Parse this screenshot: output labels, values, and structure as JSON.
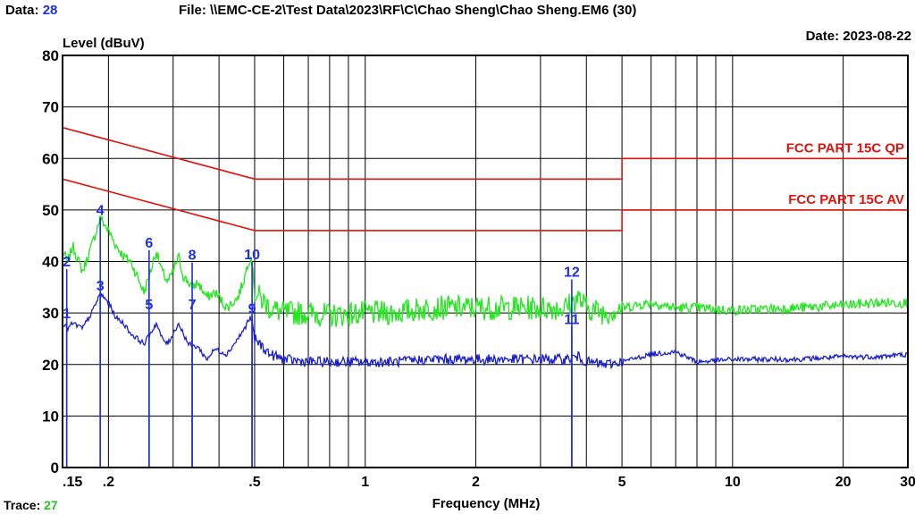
{
  "header": {
    "data_label": "Data:",
    "data_value": "28",
    "file_label": "File:",
    "file_path": "\\\\EMC-CE-2\\Test Data\\2023\\RF\\C\\Chao Sheng\\Chao Sheng.EM6  (30)",
    "date_label": "Date:",
    "date_value": "2023-08-22"
  },
  "footer": {
    "trace_label": "Trace:",
    "trace_value": "27"
  },
  "colors": {
    "qp_trace": "#22e81e",
    "av_trace": "#1a1fd0",
    "limit": "#e0140e",
    "marker": "#1d2fe0",
    "grid": "#000000"
  },
  "chart_data": {
    "type": "line",
    "ylabel": "Level (dBuV)",
    "xlabel": "Frequency (MHz)",
    "x_scale": "log",
    "xlim": [
      0.15,
      30
    ],
    "ylim": [
      0,
      80
    ],
    "x_ticks": [
      {
        "value": 0.15,
        "label": ".15"
      },
      {
        "value": 0.2,
        "label": ".2"
      },
      {
        "value": 0.5,
        "label": ".5"
      },
      {
        "value": 1,
        "label": "1"
      },
      {
        "value": 2,
        "label": "2"
      },
      {
        "value": 5,
        "label": "5"
      },
      {
        "value": 10,
        "label": "10"
      },
      {
        "value": 20,
        "label": "20"
      },
      {
        "value": 30,
        "label": "30"
      }
    ],
    "y_ticks": [
      0,
      10,
      20,
      30,
      40,
      50,
      60,
      70,
      80
    ],
    "grid": true,
    "limit_lines": [
      {
        "name": "FCC PART 15C QP",
        "points": [
          [
            0.15,
            66
          ],
          [
            0.5,
            56
          ],
          [
            5,
            56
          ],
          [
            5,
            60
          ],
          [
            30,
            60
          ]
        ]
      },
      {
        "name": "FCC PART 15C AV",
        "points": [
          [
            0.15,
            56
          ],
          [
            0.5,
            46
          ],
          [
            5,
            46
          ],
          [
            5,
            50
          ],
          [
            30,
            50
          ]
        ]
      }
    ],
    "series": [
      {
        "color": "#22e81e",
        "points": [
          [
            0.15,
            42
          ],
          [
            0.155,
            40
          ],
          [
            0.16,
            43
          ],
          [
            0.17,
            38
          ],
          [
            0.18,
            43
          ],
          [
            0.19,
            48.5
          ],
          [
            0.2,
            46
          ],
          [
            0.21,
            43
          ],
          [
            0.22,
            41
          ],
          [
            0.23,
            40
          ],
          [
            0.24,
            37
          ],
          [
            0.25,
            34
          ],
          [
            0.26,
            38
          ],
          [
            0.27,
            42
          ],
          [
            0.28,
            38
          ],
          [
            0.29,
            36
          ],
          [
            0.3,
            38
          ],
          [
            0.31,
            41
          ],
          [
            0.32,
            37
          ],
          [
            0.33,
            36
          ],
          [
            0.34,
            35
          ],
          [
            0.35,
            36
          ],
          [
            0.37,
            33
          ],
          [
            0.39,
            34
          ],
          [
            0.42,
            31
          ],
          [
            0.45,
            33
          ],
          [
            0.47,
            37
          ],
          [
            0.48,
            40
          ],
          [
            0.49,
            41
          ],
          [
            0.5,
            34
          ],
          [
            0.55,
            31
          ],
          [
            0.6,
            30
          ],
          [
            0.7,
            30
          ],
          [
            0.8,
            29.5
          ],
          [
            1.0,
            30
          ],
          [
            1.2,
            30
          ],
          [
            1.5,
            31
          ],
          [
            2.0,
            31
          ],
          [
            2.5,
            31
          ],
          [
            3.0,
            31
          ],
          [
            3.5,
            31
          ],
          [
            3.8,
            33
          ],
          [
            4.0,
            31
          ],
          [
            4.5,
            30
          ],
          [
            5.0,
            31
          ],
          [
            6.0,
            32
          ],
          [
            7.0,
            31
          ],
          [
            8.0,
            31
          ],
          [
            10.0,
            30.5
          ],
          [
            15.0,
            31
          ],
          [
            20.0,
            31.5
          ],
          [
            25.0,
            32
          ],
          [
            30.0,
            32
          ]
        ]
      },
      {
        "color": "#1a1fd0",
        "points": [
          [
            0.15,
            28
          ],
          [
            0.155,
            27
          ],
          [
            0.16,
            28
          ],
          [
            0.17,
            27
          ],
          [
            0.18,
            30
          ],
          [
            0.19,
            33.8
          ],
          [
            0.2,
            32
          ],
          [
            0.21,
            29
          ],
          [
            0.22,
            28
          ],
          [
            0.23,
            26
          ],
          [
            0.24,
            25
          ],
          [
            0.25,
            24
          ],
          [
            0.26,
            26
          ],
          [
            0.27,
            28
          ],
          [
            0.28,
            25
          ],
          [
            0.29,
            24
          ],
          [
            0.3,
            26
          ],
          [
            0.31,
            28
          ],
          [
            0.32,
            26
          ],
          [
            0.33,
            24
          ],
          [
            0.34,
            23.5
          ],
          [
            0.35,
            23.5
          ],
          [
            0.37,
            21
          ],
          [
            0.39,
            23
          ],
          [
            0.42,
            22
          ],
          [
            0.45,
            25
          ],
          [
            0.47,
            27
          ],
          [
            0.48,
            28.5
          ],
          [
            0.49,
            29
          ],
          [
            0.5,
            25
          ],
          [
            0.55,
            22
          ],
          [
            0.6,
            21
          ],
          [
            0.7,
            20.5
          ],
          [
            0.8,
            20.5
          ],
          [
            1.0,
            20.5
          ],
          [
            1.2,
            20.5
          ],
          [
            1.5,
            21
          ],
          [
            2.0,
            21
          ],
          [
            2.5,
            21
          ],
          [
            3.0,
            21
          ],
          [
            3.5,
            21
          ],
          [
            3.8,
            21.5
          ],
          [
            4.0,
            20.5
          ],
          [
            4.5,
            20
          ],
          [
            5.0,
            20.5
          ],
          [
            6.0,
            22
          ],
          [
            7.0,
            22.5
          ],
          [
            8.0,
            20.5
          ],
          [
            10.0,
            21
          ],
          [
            15.0,
            21
          ],
          [
            20.0,
            21.5
          ],
          [
            25.0,
            21.5
          ],
          [
            30.0,
            22
          ]
        ]
      }
    ],
    "markers": [
      {
        "label": "1",
        "freq": 0.154,
        "level": 28.5
      },
      {
        "label": "2",
        "freq": 0.154,
        "level": 38.5
      },
      {
        "label": "3",
        "freq": 0.19,
        "level": 33.8
      },
      {
        "label": "4",
        "freq": 0.19,
        "level": 48.5
      },
      {
        "label": "5",
        "freq": 0.258,
        "level": 30.2
      },
      {
        "label": "6",
        "freq": 0.258,
        "level": 42.2
      },
      {
        "label": "7",
        "freq": 0.338,
        "level": 30.2
      },
      {
        "label": "8",
        "freq": 0.338,
        "level": 39.8
      },
      {
        "label": "9",
        "freq": 0.492,
        "level": 29.4
      },
      {
        "label": "10",
        "freq": 0.492,
        "level": 39.9
      },
      {
        "label": "11",
        "freq": 3.65,
        "level": 27.3
      },
      {
        "label": "12",
        "freq": 3.65,
        "level": 36.5
      }
    ]
  }
}
